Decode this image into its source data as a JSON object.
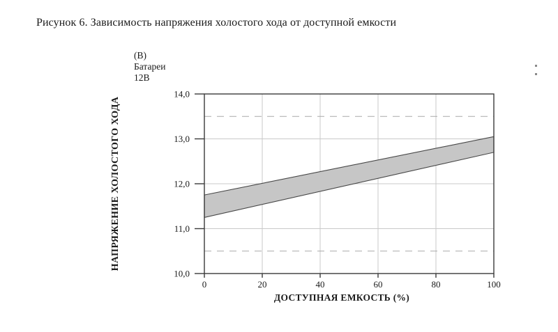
{
  "page": {
    "caption": "Рисунок 6. Зависимость напряжения холостого хода от доступной емкости"
  },
  "chart_data": {
    "type": "area",
    "title": "",
    "unit_label_lines": [
      "(В)",
      "Батареи",
      "12В"
    ],
    "ylabel": "НАПРЯЖЕНИЕ ХОЛОСТОГО ХОДА",
    "xlabel": "ДОСТУПНАЯ ЕМКОСТЬ (%)",
    "xlim": [
      0,
      100
    ],
    "ylim": [
      10,
      14
    ],
    "x_ticks": [
      0,
      20,
      40,
      60,
      80,
      100
    ],
    "x_tick_labels": [
      "0",
      "20",
      "40",
      "60",
      "80",
      "100"
    ],
    "y_ticks": [
      10,
      11,
      12,
      13,
      14
    ],
    "y_tick_labels": [
      "10,0",
      "11,0",
      "12,0",
      "13,0",
      "14,0"
    ],
    "grid": {
      "horizontal_solid_y": [
        11,
        12,
        13
      ],
      "horizontal_dashed_y": [
        10.5,
        13.5
      ],
      "vertical_solid_x": [
        20,
        40,
        60,
        80
      ]
    },
    "band": {
      "name": "open-circuit-voltage-range",
      "x": [
        0,
        100
      ],
      "upper": [
        11.75,
        13.05
      ],
      "lower": [
        11.25,
        12.7
      ]
    },
    "colors": {
      "band_fill": "#c6c6c6",
      "band_edge": "#474747",
      "grid_solid": "#c9c9c9",
      "grid_dashed": "#a9a9a9",
      "axis": "#3a3a3a",
      "text": "#1a1a1a"
    }
  }
}
